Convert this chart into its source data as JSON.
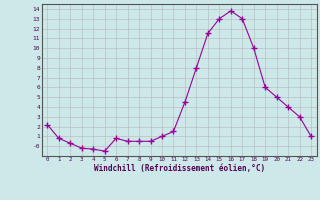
{
  "x": [
    0,
    1,
    2,
    3,
    4,
    5,
    6,
    7,
    8,
    9,
    10,
    11,
    12,
    13,
    14,
    15,
    16,
    17,
    18,
    19,
    20,
    21,
    22,
    23
  ],
  "y": [
    2.2,
    0.8,
    0.3,
    -0.2,
    -0.3,
    -0.5,
    0.8,
    0.5,
    0.5,
    0.5,
    1.0,
    1.5,
    4.5,
    8.0,
    11.5,
    13.0,
    13.8,
    13.0,
    10.0,
    6.0,
    5.0,
    4.0,
    3.0,
    1.0
  ],
  "xlabel": "Windchill (Refroidissement éolien,°C)",
  "line_color": "#990099",
  "marker": "+",
  "marker_size": 4,
  "background_color": "#cce8e8",
  "grid_color": "#bbbbbb",
  "ylim": [
    -1,
    14.5
  ],
  "xlim": [
    -0.5,
    23.5
  ],
  "yticks": [
    0,
    1,
    2,
    3,
    4,
    5,
    6,
    7,
    8,
    9,
    10,
    11,
    12,
    13,
    14
  ],
  "ytick_labels": [
    "-0",
    "1",
    "2",
    "3",
    "4",
    "5",
    "6",
    "7",
    "8",
    "9",
    "10",
    "11",
    "12",
    "13",
    "14"
  ],
  "xticks": [
    0,
    1,
    2,
    3,
    4,
    5,
    6,
    7,
    8,
    9,
    10,
    11,
    12,
    13,
    14,
    15,
    16,
    17,
    18,
    19,
    20,
    21,
    22,
    23
  ]
}
